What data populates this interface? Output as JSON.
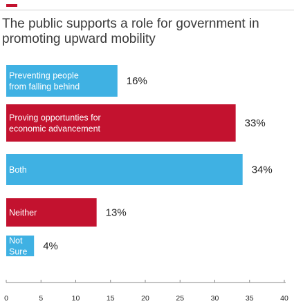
{
  "title": "The public supports a role for government in promoting upward mobility",
  "colors": {
    "blue": "#3FB1E3",
    "red": "#C3122F",
    "axis": "#888888"
  },
  "chart_data": {
    "type": "bar",
    "orientation": "horizontal",
    "categories": [
      [
        "Preventing people",
        "from falling behind"
      ],
      [
        "Proving opportunties for",
        "economic advancement"
      ],
      [
        "Both"
      ],
      [
        "Neither"
      ],
      [
        "Not",
        "Sure"
      ]
    ],
    "values": [
      16,
      33,
      34,
      13,
      4
    ],
    "value_labels": [
      "16%",
      "33%",
      "34%",
      "13%",
      "4%"
    ],
    "bar_colors": [
      "#3FB1E3",
      "#C3122F",
      "#3FB1E3",
      "#C3122F",
      "#3FB1E3"
    ],
    "xlim": [
      0,
      40
    ],
    "xticks": [
      0,
      5,
      10,
      15,
      20,
      25,
      30,
      35,
      40
    ],
    "grid": false
  }
}
